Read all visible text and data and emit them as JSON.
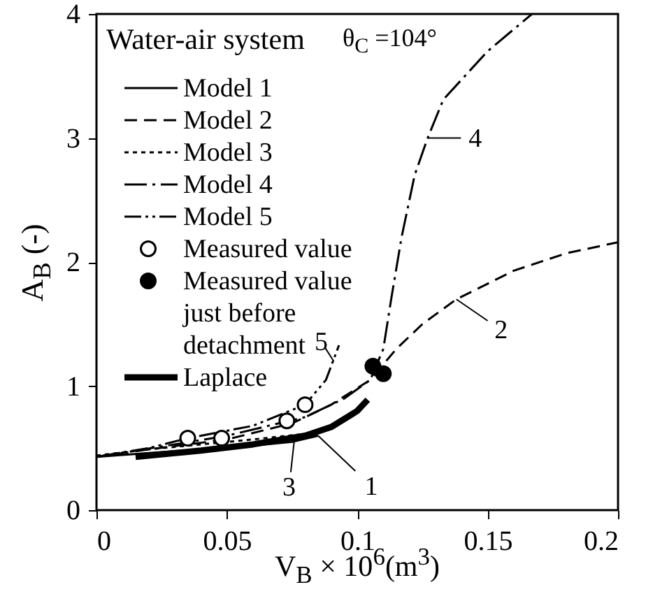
{
  "chart_data": {
    "type": "line",
    "xlabel": "V$_{B}$ × 10$^{6}$(m$^{3}$)",
    "ylabel": "A$_{B}$ (-)",
    "annotations": [
      "Water-air system",
      "θ$_{C}$ =104°",
      {
        "text": "1",
        "x": 0.085,
        "y": 0.6
      },
      {
        "text": "2",
        "x": 0.138,
        "y": 1.7
      },
      {
        "text": "3",
        "x": 0.076,
        "y": 0.59
      },
      {
        "text": "4",
        "x": 0.127,
        "y": 3.0
      },
      {
        "text": "5",
        "x": 0.091,
        "y": 1.2
      }
    ],
    "xlim": [
      0,
      0.2
    ],
    "xticks": [
      0,
      0.05,
      0.1,
      0.15,
      0.2
    ],
    "ylim": [
      0,
      4
    ],
    "yticks": [
      0,
      1,
      2,
      3,
      4
    ],
    "grid": false,
    "legend": "top left",
    "series": [
      {
        "name": "Model 1",
        "line_style": "solid",
        "color": "#000000",
        "x": [
          0,
          0.02,
          0.04,
          0.06,
          0.075,
          0.085
        ],
        "values": [
          0.43,
          0.46,
          0.49,
          0.52,
          0.55,
          0.6
        ]
      },
      {
        "name": "Model 2",
        "line_style": "dashed",
        "color": "#000000",
        "x": [
          0,
          0.02,
          0.05,
          0.075,
          0.09,
          0.105,
          0.115,
          0.125,
          0.138,
          0.16,
          0.18,
          0.2
        ],
        "values": [
          0.43,
          0.49,
          0.57,
          0.7,
          0.85,
          1.05,
          1.3,
          1.5,
          1.7,
          1.93,
          2.07,
          2.16
        ]
      },
      {
        "name": "Model 3",
        "line_style": "dotted",
        "color": "#000000",
        "x": [
          0,
          0.02,
          0.04,
          0.06,
          0.078
        ],
        "values": [
          0.44,
          0.49,
          0.53,
          0.57,
          0.61
        ]
      },
      {
        "name": "Model 4",
        "line_style": "dashed",
        "color": "#000000",
        "x": [
          0,
          0.03,
          0.05,
          0.08,
          0.095,
          0.105,
          0.11,
          0.113,
          0.117,
          0.122,
          0.127,
          0.133,
          0.15,
          0.167
        ],
        "values": [
          0.43,
          0.53,
          0.6,
          0.75,
          0.9,
          1.05,
          1.3,
          1.7,
          2.2,
          2.7,
          3.0,
          3.31,
          3.7,
          4.0
        ]
      },
      {
        "name": "Model 5",
        "line_style": "dashed",
        "color": "#000000",
        "x": [
          0,
          0.02,
          0.035,
          0.06,
          0.08,
          0.088,
          0.093
        ],
        "values": [
          0.43,
          0.5,
          0.58,
          0.68,
          0.85,
          1.05,
          1.33
        ]
      },
      {
        "name": "Measured value",
        "type": "scatter",
        "marker": "circle",
        "color": "#ffffff",
        "x": [
          0.035,
          0.048,
          0.073,
          0.08
        ],
        "values": [
          0.58,
          0.58,
          0.72,
          0.85
        ]
      },
      {
        "name": "Measured value just before detachment",
        "type": "scatter",
        "marker": "circle",
        "color": "#000000",
        "x": [
          0.106,
          0.11
        ],
        "values": [
          1.16,
          1.1
        ]
      },
      {
        "name": "Laplace",
        "line_style": "solid",
        "color": "#000000",
        "x": [
          0.015,
          0.04,
          0.06,
          0.08,
          0.09,
          0.1,
          0.104
        ],
        "values": [
          0.43,
          0.48,
          0.53,
          0.6,
          0.67,
          0.8,
          0.89
        ]
      }
    ]
  }
}
